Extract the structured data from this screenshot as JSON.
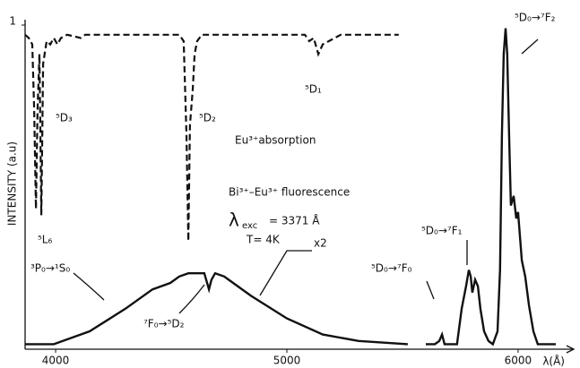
{
  "chart_data": {
    "type": "line",
    "y_label": "INTENSITY (a.u)",
    "x_label": "λ(Å)",
    "xlim": [
      3868,
      6260
    ],
    "xticks": [
      4000,
      5000,
      6000
    ],
    "ylim": [
      0,
      1
    ],
    "yticks": [
      1
    ],
    "series": [
      {
        "name": "absorption",
        "color": "#111",
        "dash": true,
        "x": [
          3868,
          3884,
          3899,
          3907,
          3915,
          3922,
          3930,
          3938,
          3946,
          3961,
          3977,
          3992,
          4008,
          4023,
          4050,
          4109,
          4128,
          4225,
          4535,
          4554,
          4566,
          4574,
          4581,
          4593,
          4601,
          4612,
          4632,
          5000,
          5078,
          5097,
          5116,
          5136,
          5155,
          5233,
          5484
        ],
        "values": [
          0.97,
          0.96,
          0.94,
          0.74,
          0.43,
          0.74,
          0.91,
          0.41,
          0.88,
          0.95,
          0.94,
          0.96,
          0.94,
          0.96,
          0.97,
          0.96,
          0.97,
          0.97,
          0.97,
          0.95,
          0.66,
          0.33,
          0.69,
          0.8,
          0.91,
          0.95,
          0.97,
          0.97,
          0.97,
          0.95,
          0.96,
          0.91,
          0.94,
          0.97,
          0.97
        ]
      },
      {
        "name": "fluorescence",
        "color": "#111",
        "dash": false,
        "x": [
          3868,
          3992,
          4147,
          4302,
          4419,
          4496,
          4535,
          4574,
          4612,
          4643,
          4651,
          4663,
          4674,
          4690,
          4729,
          4845,
          5000,
          5155,
          5310,
          5523,
          5560,
          5601,
          5640,
          5659,
          5671,
          5682,
          5698,
          5717,
          5736,
          5756,
          5775,
          5787,
          5795,
          5802,
          5814,
          5826,
          5837,
          5853,
          5872,
          5891,
          5911,
          5922,
          5930,
          5938,
          5946,
          5953,
          5961,
          5969,
          5981,
          5992,
          6000,
          6016,
          6031,
          6047,
          6066,
          6085,
          6105,
          6163
        ],
        "values": [
          0.01,
          0.01,
          0.05,
          0.12,
          0.18,
          0.2,
          0.22,
          0.23,
          0.23,
          0.23,
          0.21,
          0.18,
          0.21,
          0.23,
          0.22,
          0.16,
          0.09,
          0.04,
          0.02,
          0.01,
          null,
          0.01,
          0.01,
          0.02,
          0.04,
          0.01,
          0.01,
          0.01,
          0.01,
          0.12,
          0.19,
          0.24,
          0.22,
          0.17,
          0.21,
          0.19,
          0.12,
          0.05,
          0.02,
          0.01,
          0.05,
          0.24,
          0.66,
          0.91,
          0.99,
          0.91,
          0.66,
          0.44,
          0.47,
          0.4,
          0.42,
          0.27,
          0.22,
          0.13,
          0.05,
          0.01,
          0.01,
          0.01
        ]
      }
    ],
    "annotations": [
      "⁵L₆",
      "⁵D₃",
      "⁵D₂",
      "⁵D₁",
      "Eu³⁺absorption",
      "Bi³⁺–Eu³⁺ fluorescence",
      "λ",
      "exc",
      "= 3371 Å",
      "T= 4K",
      "³P₀→¹S₀",
      "x2",
      "⁷F₀→⁵D₂",
      "⁵D₀→⁷F₀",
      "⁵D₀→⁷F₁",
      "⁵D₀→⁷F₂"
    ]
  }
}
